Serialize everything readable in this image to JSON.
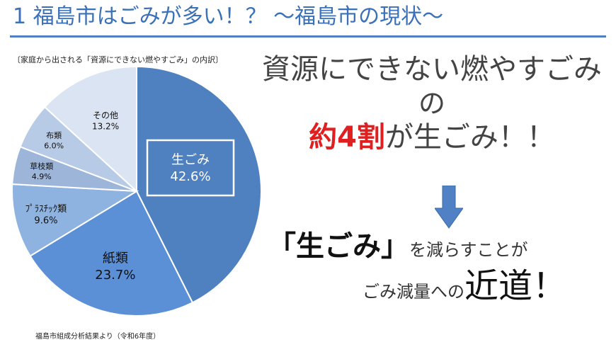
{
  "title": "1  福島市はごみが多い！？  〜福島市の現状〜",
  "colors": {
    "title": "#3b71b8",
    "accent_red": "#e02020",
    "arrow": "#4f81c4"
  },
  "chart_data": {
    "type": "pie",
    "title": "〔家庭から出される「資源にできない燃やすごみ」の内訳〕",
    "source": "福島市組成分析結果より（令和6年度）",
    "slices": [
      {
        "label": "生ごみ",
        "value": 42.6,
        "value_label": "42.6%",
        "color": "#4f80c0"
      },
      {
        "label": "紙類",
        "value": 23.7,
        "value_label": "23.7%",
        "color": "#5b8fd6"
      },
      {
        "label": "ﾌﾟﾗｽﾁｯｸ類",
        "value": 9.6,
        "value_label": "9.6%",
        "color": "#8eb3e1"
      },
      {
        "label": "草枝類",
        "value": 4.9,
        "value_label": "4.9%",
        "color": "#9db5d9"
      },
      {
        "label": "布類",
        "value": 6.0,
        "value_label": "6.0%",
        "color": "#b8cbe6"
      },
      {
        "label": "その他",
        "value": 13.2,
        "value_label": "13.2%",
        "color": "#dbe4f2"
      }
    ]
  },
  "message": {
    "line1": "資源にできない燃やすごみ",
    "line2": "の",
    "line3_accent": "約4割",
    "line3_rest": "が生ごみ！！"
  },
  "cta": {
    "strong": "「生ごみ」",
    "rest": "を減らすことが"
  },
  "goal": {
    "small": "ごみ減量への",
    "big": "近道！"
  }
}
